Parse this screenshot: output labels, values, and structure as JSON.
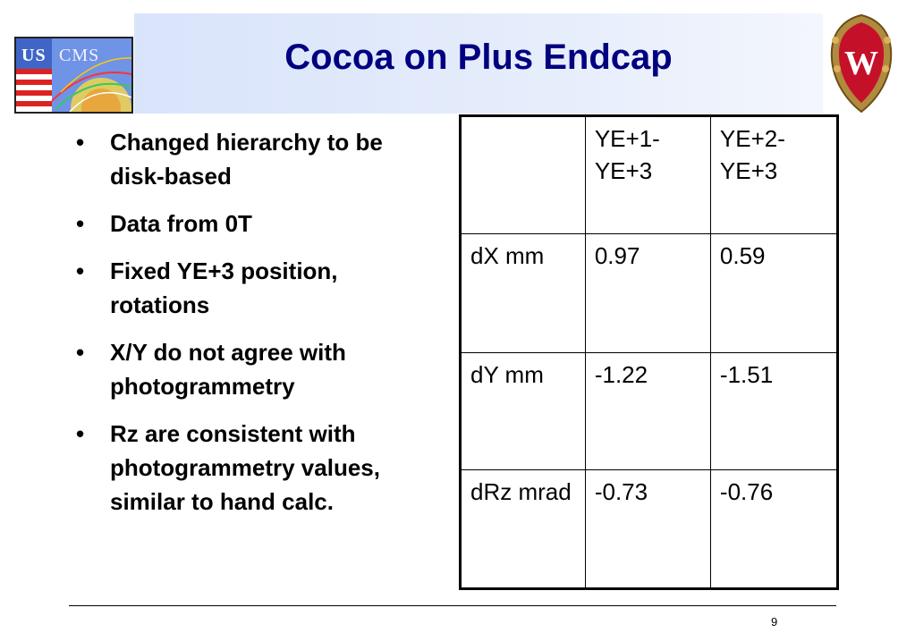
{
  "slide": {
    "title": "Cocoa on Plus Endcap",
    "page_number": "9"
  },
  "logos": {
    "left": {
      "text_us": "US",
      "text_cms": "CMS"
    },
    "right": {
      "letter": "W"
    }
  },
  "bullets": [
    {
      "text": "Changed hierarchy to be disk-based"
    },
    {
      "text": "Data from 0T"
    },
    {
      "text": "Fixed YE+3 position, rotations"
    },
    {
      "text": "X/Y do not agree with photogrammetry"
    },
    {
      "text": "Rz are consistent with photogrammetry values, similar to hand calc."
    }
  ],
  "table": {
    "header": [
      "",
      "YE+1-YE+3",
      "YE+2-\nYE+3"
    ],
    "rows": [
      [
        "dX mm",
        "0.97",
        "0.59"
      ],
      [
        "dY mm",
        "-1.22",
        "-1.51"
      ],
      [
        "dRz mrad",
        "-0.73",
        "-0.76"
      ]
    ]
  },
  "colors": {
    "title": "#000080",
    "title_band": "#dfe7fb"
  }
}
